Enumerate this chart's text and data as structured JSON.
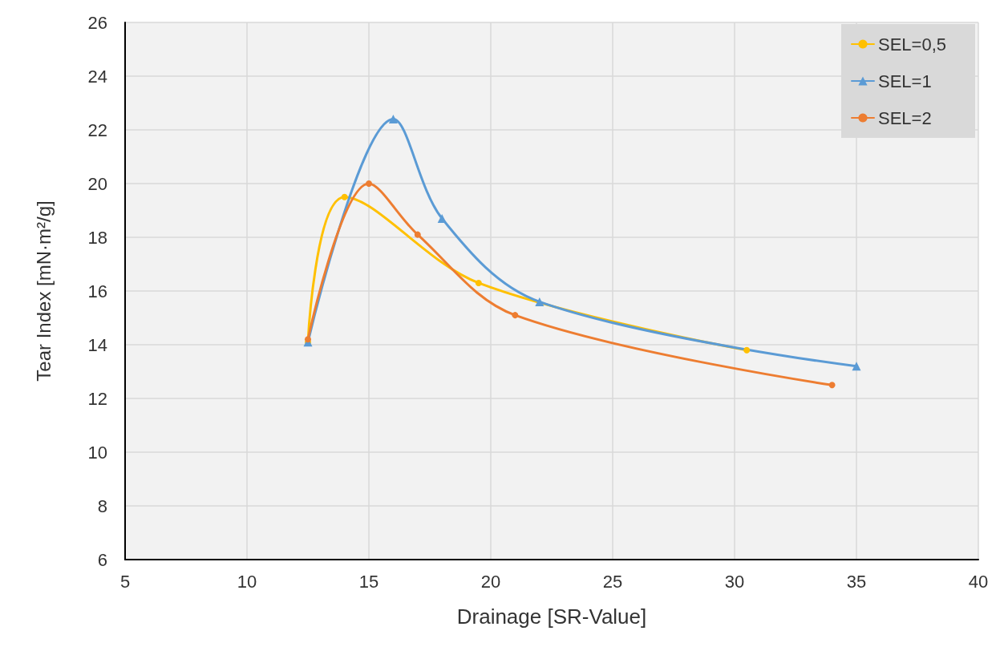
{
  "chart_data": {
    "type": "line",
    "xlabel": "Drainage [SR-Value]",
    "ylabel": "Tear Index [mN·m²/g]",
    "xlim": [
      5,
      40
    ],
    "xticks": [
      5,
      10,
      15,
      20,
      25,
      30,
      35,
      40
    ],
    "ylim": [
      6,
      26
    ],
    "yticks": [
      6,
      8,
      10,
      12,
      14,
      16,
      18,
      20,
      22,
      24,
      26
    ],
    "grid": true,
    "legend": "top right",
    "line_style": "solid",
    "series": [
      {
        "name": "SEL=0,5",
        "color": "#ffc000",
        "marker": "circle",
        "x": [
          12.5,
          14,
          19.5,
          30.5
        ],
        "values": [
          14.1,
          19.5,
          16.3,
          13.8
        ]
      },
      {
        "name": "SEL=1",
        "color": "#5b9bd5",
        "marker": "triangle",
        "x": [
          12.5,
          16,
          18,
          22,
          35
        ],
        "values": [
          14.1,
          22.4,
          18.7,
          15.6,
          13.2
        ]
      },
      {
        "name": "SEL=2",
        "color": "#ed7d31",
        "marker": "circle",
        "x": [
          12.5,
          15,
          17,
          21,
          34
        ],
        "values": [
          14.2,
          20.0,
          18.1,
          15.1,
          12.5
        ]
      }
    ]
  }
}
